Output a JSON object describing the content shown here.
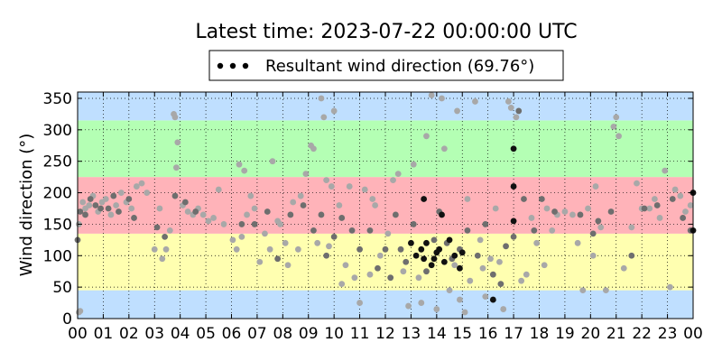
{
  "chart_data": {
    "type": "scatter",
    "title": "Latest time: 2023-07-22 00:00:00 UTC",
    "ylabel": "Wind direction (°)",
    "xlabel": "",
    "legend": {
      "label": "Resultant wind direction (69.76°)",
      "placement": "top-center"
    },
    "xlim": [
      0,
      24
    ],
    "ylim": [
      0,
      360
    ],
    "x_ticks": [
      0,
      1,
      2,
      3,
      4,
      5,
      6,
      7,
      8,
      9,
      10,
      11,
      12,
      13,
      14,
      15,
      16,
      17,
      18,
      19,
      20,
      21,
      22,
      23,
      24
    ],
    "x_tick_labels": [
      "00",
      "01",
      "02",
      "03",
      "04",
      "05",
      "06",
      "07",
      "08",
      "09",
      "10",
      "11",
      "12",
      "13",
      "14",
      "15",
      "16",
      "17",
      "18",
      "19",
      "20",
      "21",
      "22",
      "23",
      "00"
    ],
    "y_ticks": [
      0,
      50,
      100,
      150,
      200,
      250,
      300,
      350
    ],
    "grid": true,
    "bands": [
      {
        "from": 0,
        "to": 45,
        "color": "#bfdfff"
      },
      {
        "from": 45,
        "to": 135,
        "color": "#ffffb0"
      },
      {
        "from": 135,
        "to": 225,
        "color": "#ffb3b9"
      },
      {
        "from": 225,
        "to": 315,
        "color": "#b4ffb4"
      },
      {
        "from": 315,
        "to": 360,
        "color": "#bfdfff"
      }
    ],
    "series": [
      {
        "color": "#a8a8a8",
        "points": [
          [
            0.05,
            150
          ],
          [
            0.05,
            10
          ],
          [
            0.1,
            12
          ],
          [
            0.2,
            185
          ],
          [
            0.3,
            175
          ],
          [
            0.45,
            180
          ],
          [
            0.6,
            195
          ],
          [
            0.8,
            170
          ],
          [
            0.95,
            185
          ],
          [
            1.1,
            190
          ],
          [
            1.3,
            165
          ],
          [
            1.5,
            180
          ],
          [
            1.7,
            200
          ],
          [
            1.9,
            185
          ],
          [
            2.1,
            175
          ],
          [
            2.3,
            210
          ],
          [
            2.5,
            215
          ],
          [
            2.7,
            200
          ],
          [
            3.0,
            110
          ],
          [
            3.2,
            175
          ],
          [
            3.3,
            95
          ],
          [
            3.45,
            110
          ],
          [
            3.6,
            140
          ],
          [
            3.75,
            325
          ],
          [
            3.8,
            320
          ],
          [
            3.85,
            240
          ],
          [
            3.9,
            280
          ],
          [
            4.1,
            180
          ],
          [
            4.3,
            170
          ],
          [
            4.5,
            165
          ],
          [
            4.7,
            175
          ],
          [
            4.9,
            165
          ],
          [
            5.1,
            155
          ],
          [
            5.3,
            160
          ],
          [
            5.5,
            205
          ],
          [
            5.7,
            150
          ],
          [
            6.05,
            125
          ],
          [
            6.2,
            110
          ],
          [
            6.3,
            245
          ],
          [
            6.4,
            130
          ],
          [
            6.5,
            235
          ],
          [
            6.6,
            165
          ],
          [
            6.75,
            195
          ],
          [
            6.9,
            175
          ],
          [
            7.1,
            90
          ],
          [
            7.3,
            135
          ],
          [
            7.5,
            110
          ],
          [
            7.6,
            250
          ],
          [
            7.8,
            155
          ],
          [
            7.9,
            150
          ],
          [
            8.1,
            120
          ],
          [
            8.2,
            85
          ],
          [
            8.4,
            185
          ],
          [
            8.6,
            110
          ],
          [
            8.7,
            195
          ],
          [
            8.9,
            230
          ],
          [
            9.1,
            275
          ],
          [
            9.2,
            270
          ],
          [
            9.35,
            120
          ],
          [
            9.5,
            350
          ],
          [
            9.6,
            320
          ],
          [
            9.7,
            220
          ],
          [
            9.8,
            115
          ],
          [
            9.9,
            210
          ],
          [
            10.0,
            330
          ],
          [
            10.2,
            180
          ],
          [
            10.3,
            55
          ],
          [
            10.45,
            85
          ],
          [
            10.6,
            210
          ],
          [
            10.8,
            65
          ],
          [
            11.0,
            25
          ],
          [
            11.2,
            205
          ],
          [
            11.4,
            70
          ],
          [
            11.5,
            190
          ],
          [
            11.6,
            180
          ],
          [
            11.8,
            100
          ],
          [
            12.1,
            135
          ],
          [
            12.3,
            220
          ],
          [
            12.5,
            230
          ],
          [
            12.7,
            75
          ],
          [
            12.9,
            20
          ],
          [
            13.1,
            245
          ],
          [
            13.3,
            65
          ],
          [
            13.4,
            25
          ],
          [
            13.6,
            290
          ],
          [
            13.8,
            355
          ],
          [
            14.0,
            15
          ],
          [
            14.2,
            350
          ],
          [
            14.3,
            270
          ],
          [
            14.5,
            45
          ],
          [
            14.7,
            85
          ],
          [
            14.8,
            330
          ],
          [
            14.9,
            30
          ],
          [
            15.1,
            10
          ],
          [
            15.2,
            190
          ],
          [
            15.3,
            60
          ],
          [
            15.5,
            345
          ],
          [
            15.7,
            125
          ],
          [
            15.8,
            80
          ],
          [
            15.9,
            35
          ],
          [
            16.1,
            95
          ],
          [
            16.3,
            175
          ],
          [
            16.45,
            90
          ],
          [
            16.6,
            15
          ],
          [
            16.8,
            345
          ],
          [
            16.9,
            335
          ],
          [
            17.1,
            320
          ],
          [
            17.3,
            60
          ],
          [
            17.5,
            70
          ],
          [
            17.7,
            160
          ],
          [
            17.9,
            120
          ],
          [
            18.2,
            85
          ],
          [
            18.3,
            175
          ],
          [
            18.5,
            140
          ],
          [
            18.7,
            165
          ],
          [
            19.0,
            170
          ],
          [
            19.3,
            165
          ],
          [
            19.5,
            120
          ],
          [
            19.7,
            45
          ],
          [
            19.9,
            175
          ],
          [
            20.1,
            100
          ],
          [
            20.2,
            210
          ],
          [
            20.4,
            145
          ],
          [
            20.6,
            45
          ],
          [
            20.9,
            305
          ],
          [
            21.0,
            320
          ],
          [
            21.1,
            290
          ],
          [
            21.3,
            80
          ],
          [
            21.6,
            145
          ],
          [
            21.8,
            215
          ],
          [
            22.0,
            175
          ],
          [
            22.3,
            175
          ],
          [
            22.5,
            190
          ],
          [
            22.7,
            160
          ],
          [
            22.9,
            235
          ],
          [
            23.1,
            50
          ],
          [
            23.3,
            205
          ],
          [
            23.5,
            195
          ],
          [
            23.7,
            170
          ],
          [
            23.9,
            180
          ]
        ]
      },
      {
        "color": "#6e6e6e",
        "points": [
          [
            0.0,
            125
          ],
          [
            0.1,
            170
          ],
          [
            0.3,
            165
          ],
          [
            0.5,
            190
          ],
          [
            0.7,
            180
          ],
          [
            0.9,
            175
          ],
          [
            1.2,
            175
          ],
          [
            1.4,
            195
          ],
          [
            1.6,
            170
          ],
          [
            2.0,
            190
          ],
          [
            2.2,
            160
          ],
          [
            3.1,
            145
          ],
          [
            3.4,
            130
          ],
          [
            3.8,
            195
          ],
          [
            4.2,
            185
          ],
          [
            4.6,
            170
          ],
          [
            6.4,
            150
          ],
          [
            6.9,
            150
          ],
          [
            7.4,
            170
          ],
          [
            7.8,
            95
          ],
          [
            8.3,
            165
          ],
          [
            8.8,
            180
          ],
          [
            9.2,
            140
          ],
          [
            9.5,
            165
          ],
          [
            9.7,
            100
          ],
          [
            10.0,
            130
          ],
          [
            10.3,
            160
          ],
          [
            10.7,
            140
          ],
          [
            11.0,
            110
          ],
          [
            11.4,
            140
          ],
          [
            11.7,
            80
          ],
          [
            12.0,
            110
          ],
          [
            12.2,
            65
          ],
          [
            12.4,
            165
          ],
          [
            12.6,
            110
          ],
          [
            12.8,
            90
          ],
          [
            13.1,
            150
          ],
          [
            13.6,
            75
          ],
          [
            13.9,
            125
          ],
          [
            14.1,
            170
          ],
          [
            14.4,
            120
          ],
          [
            14.6,
            95
          ],
          [
            14.9,
            110
          ],
          [
            15.2,
            140
          ],
          [
            15.6,
            100
          ],
          [
            15.9,
            150
          ],
          [
            16.2,
            70
          ],
          [
            16.5,
            55
          ],
          [
            16.7,
            115
          ],
          [
            17.0,
            130
          ],
          [
            17.2,
            330
          ],
          [
            17.4,
            190
          ],
          [
            17.8,
            140
          ],
          [
            18.1,
            190
          ],
          [
            18.6,
            170
          ],
          [
            19.6,
            165
          ],
          [
            20.1,
            135
          ],
          [
            20.3,
            155
          ],
          [
            20.8,
            170
          ],
          [
            21.6,
            100
          ],
          [
            22.1,
            175
          ],
          [
            22.6,
            180
          ],
          [
            23.2,
            190
          ],
          [
            23.6,
            160
          ],
          [
            23.9,
            140
          ]
        ]
      },
      {
        "color": "#111111",
        "points": [
          [
            13.0,
            120
          ],
          [
            13.2,
            100
          ],
          [
            13.4,
            110
          ],
          [
            13.5,
            95
          ],
          [
            13.6,
            120
          ],
          [
            13.8,
            85
          ],
          [
            14.0,
            105
          ],
          [
            14.1,
            110
          ],
          [
            14.3,
            90
          ],
          [
            14.5,
            125
          ],
          [
            14.7,
            100
          ],
          [
            14.9,
            80
          ],
          [
            13.5,
            190
          ],
          [
            14.2,
            165
          ],
          [
            17.0,
            270
          ],
          [
            17.0,
            210
          ],
          [
            17.0,
            155
          ],
          [
            13.9,
            95
          ],
          [
            15.0,
            105
          ],
          [
            16.2,
            30
          ],
          [
            24.0,
            200
          ],
          [
            24.0,
            140
          ]
        ]
      }
    ]
  }
}
